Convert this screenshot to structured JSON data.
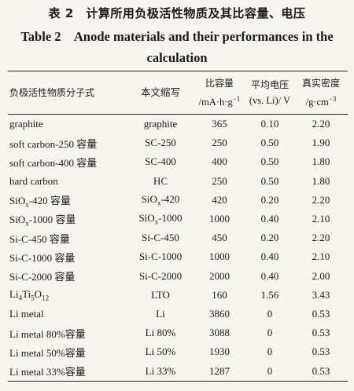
{
  "title_cn": "表 2　计算所用负极活性物质及其比容量、电压",
  "title_en": "Table 2　Anode materials and their performances in the calculation",
  "headers": {
    "name": "负极活性物质分子式",
    "abbr": "本文缩写",
    "capacity_line1": "比容量",
    "capacity_line2_html": "/mA·h·g<sup>−1</sup>",
    "voltage_line1": "平均电压",
    "voltage_line2": "(vs. Li)/ V",
    "density_line1": "真实密度",
    "density_line2_html": "/g·cm<sup>−3</sup>"
  },
  "rows": [
    {
      "name_html": "graphite",
      "abbr_html": "graphite",
      "capacity": "365",
      "voltage": "0.10",
      "density": "2.20"
    },
    {
      "name_html": "soft carbon-250 容量",
      "abbr_html": "SC-250",
      "capacity": "250",
      "voltage": "0.50",
      "density": "1.90"
    },
    {
      "name_html": "soft carbon-400 容量",
      "abbr_html": "SC-400",
      "capacity": "400",
      "voltage": "0.50",
      "density": "1.80"
    },
    {
      "name_html": "hard carbon",
      "abbr_html": "HC",
      "capacity": "250",
      "voltage": "0.50",
      "density": "1.80"
    },
    {
      "name_html": "SiO<sub>x</sub>-420 容量",
      "abbr_html": "SiO<sub>x</sub>-420",
      "capacity": "420",
      "voltage": "0.20",
      "density": "2.20"
    },
    {
      "name_html": "SiO<sub>x</sub>-1000 容量",
      "abbr_html": "SiO<sub>x</sub>-1000",
      "capacity": "1000",
      "voltage": "0.40",
      "density": "2.10"
    },
    {
      "name_html": "Si-C-450 容量",
      "abbr_html": "Si-C-450",
      "capacity": "450",
      "voltage": "0.20",
      "density": "2.20"
    },
    {
      "name_html": "Si-C-1000 容量",
      "abbr_html": "Si-C-1000",
      "capacity": "1000",
      "voltage": "0.40",
      "density": "2.10"
    },
    {
      "name_html": "Si-C-2000 容量",
      "abbr_html": "Si-C-2000",
      "capacity": "2000",
      "voltage": "0.40",
      "density": "2.00"
    },
    {
      "name_html": "Li<sub>4</sub>Ti<sub>5</sub>O<sub>12</sub>",
      "abbr_html": "LTO",
      "capacity": "160",
      "voltage": "1.56",
      "density": "3.43"
    },
    {
      "name_html": "Li metal",
      "abbr_html": "Li",
      "capacity": "3860",
      "voltage": "0",
      "density": "0.53"
    },
    {
      "name_html": "Li metal 80%容量",
      "abbr_html": "Li 80%",
      "capacity": "3088",
      "voltage": "0",
      "density": "0.53"
    },
    {
      "name_html": "Li metal 50%容量",
      "abbr_html": "Li 50%",
      "capacity": "1930",
      "voltage": "0",
      "density": "0.53"
    },
    {
      "name_html": "Li metal 33%容量",
      "abbr_html": "Li 33%",
      "capacity": "1287",
      "voltage": "0",
      "density": "0.53"
    }
  ]
}
